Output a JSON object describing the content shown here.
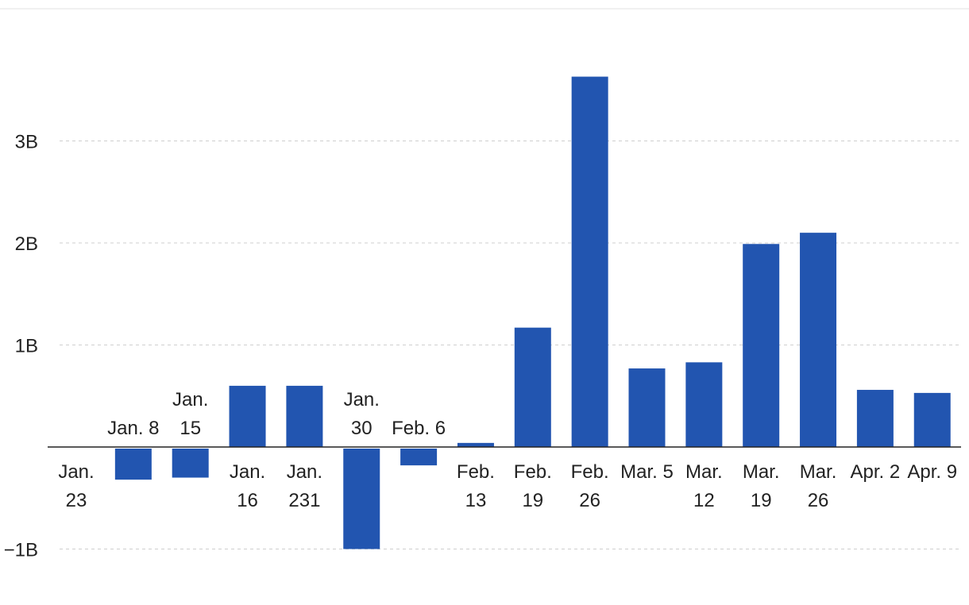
{
  "chart_data": {
    "type": "bar",
    "title": "",
    "xlabel": "",
    "ylabel": "",
    "ylim": [
      -1.05,
      3.6
    ],
    "yticks": [
      {
        "value": 3,
        "label": "3B"
      },
      {
        "value": 2,
        "label": "2B"
      },
      {
        "value": 1,
        "label": "1B"
      },
      {
        "value": -1,
        "label": "−1B"
      }
    ],
    "grid": true,
    "legend": "none",
    "bar_color": "#2255b0",
    "categories": [
      "Jan. 23",
      "Jan. 8",
      "Jan. 15",
      "Jan. 16",
      "Jan. 231",
      "Jan. 30",
      "Feb. 6",
      "Feb. 13",
      "Feb. 19",
      "Feb. 26",
      "Mar. 5",
      "Mar. 12",
      "Mar. 19",
      "Mar. 26",
      "Apr. 2",
      "Apr. 9"
    ],
    "category_label_lines": [
      [
        "Jan.",
        "23"
      ],
      [
        "Jan. 8"
      ],
      [
        "Jan.",
        "15"
      ],
      [
        "Jan.",
        "16"
      ],
      [
        "Jan.",
        "231"
      ],
      [
        "Jan.",
        "30"
      ],
      [
        "Feb. 6"
      ],
      [
        "Feb.",
        "13"
      ],
      [
        "Feb.",
        "19"
      ],
      [
        "Feb.",
        "26"
      ],
      [
        "Mar. 5"
      ],
      [
        "Mar.",
        "12"
      ],
      [
        "Mar.",
        "19"
      ],
      [
        "Mar.",
        "26"
      ],
      [
        "Apr. 2"
      ],
      [
        "Apr. 9"
      ]
    ],
    "values": [
      0,
      -0.32,
      -0.3,
      0.6,
      0.6,
      -1.0,
      -0.18,
      0.04,
      1.17,
      3.63,
      0.77,
      0.83,
      1.99,
      2.1,
      0.56,
      0.53
    ],
    "unit": "B"
  }
}
